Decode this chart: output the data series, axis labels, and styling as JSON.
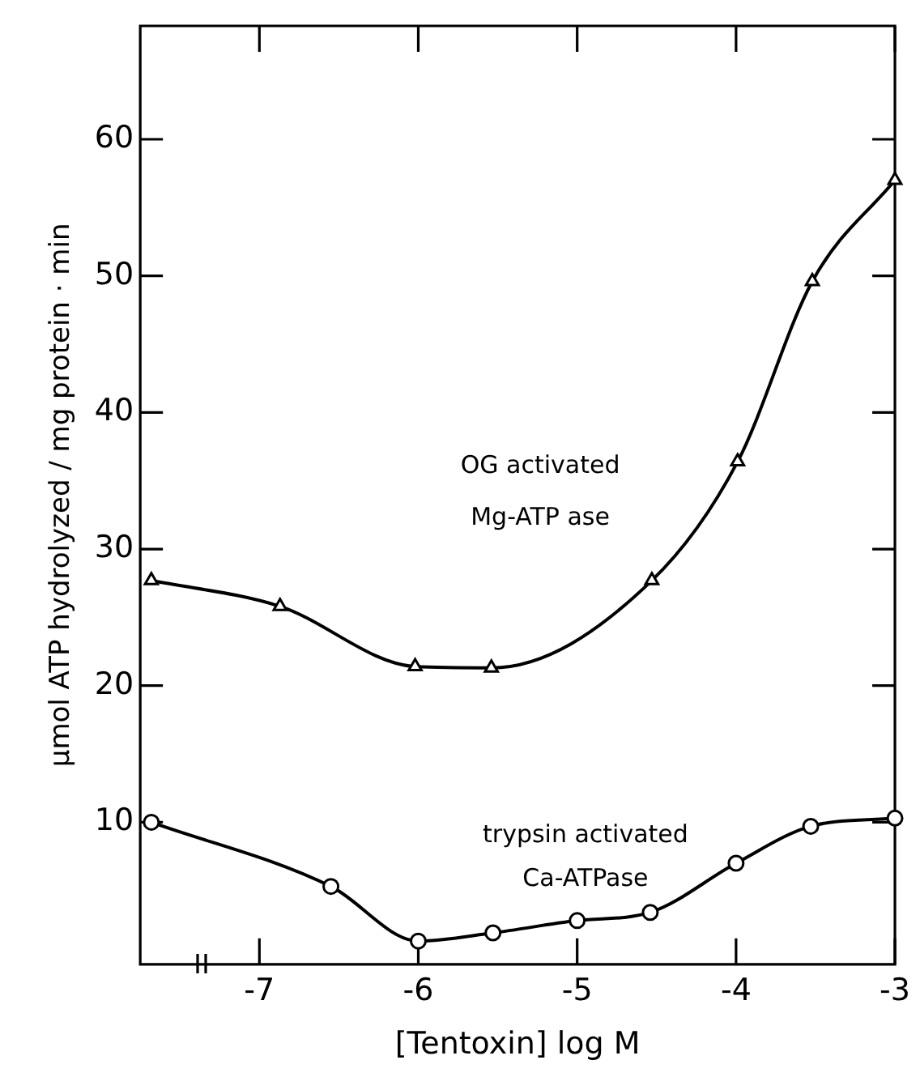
{
  "chart_data": {
    "type": "line",
    "xlabel": "[Tentoxin] log M",
    "ylabel": "μmol ATP hydrolyzed / mg protein · min",
    "xlim": [
      -7.75,
      -3
    ],
    "xticks": [
      -7,
      -6,
      -5,
      -4,
      -3
    ],
    "ylim": [
      -0.4,
      68.3
    ],
    "yticks": [
      10,
      20,
      30,
      40,
      50,
      60
    ],
    "grid": false,
    "legend": false,
    "series": [
      {
        "name": "OG activated Mg-ATP ase",
        "color": "#000000",
        "marker": "triangle",
        "x": [
          -7.68,
          -6.87,
          -6.02,
          -5.54,
          -4.53,
          -3.99,
          -3.52,
          -3
        ],
        "values": [
          27.7,
          25.8,
          21.4,
          21.3,
          27.7,
          36.4,
          49.6,
          57.0
        ]
      },
      {
        "name": "trypsin activated Ca-ATPase",
        "color": "#000000",
        "marker": "circle",
        "x": [
          -7.68,
          -6.55,
          -6.0,
          -5.53,
          -5.0,
          -4.54,
          -4.0,
          -3.53,
          -3
        ],
        "values": [
          10.0,
          5.3,
          1.3,
          1.9,
          2.8,
          3.4,
          7.0,
          9.7,
          10.3
        ]
      }
    ]
  }
}
